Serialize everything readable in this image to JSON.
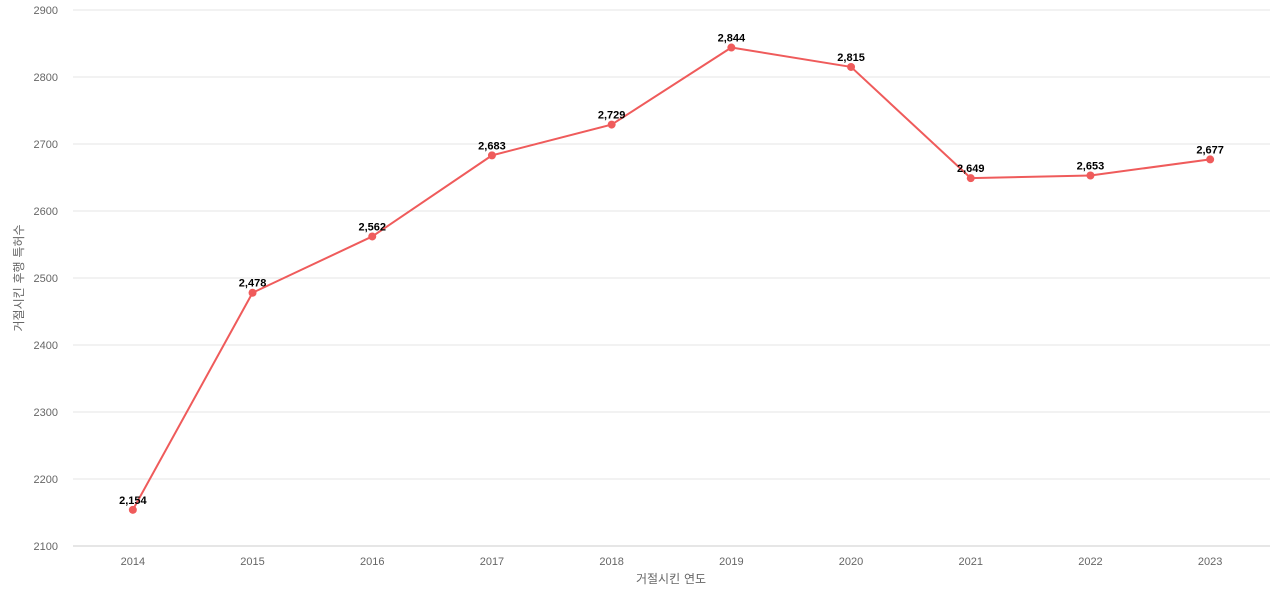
{
  "chart_data": {
    "type": "line",
    "title": "",
    "xlabel": "거절시킨 연도",
    "ylabel": "거절시킨 후행 특허수",
    "categories": [
      "2014",
      "2015",
      "2016",
      "2017",
      "2018",
      "2019",
      "2020",
      "2021",
      "2022",
      "2023"
    ],
    "series": [
      {
        "values": [
          2154,
          2478,
          2562,
          2683,
          2729,
          2844,
          2815,
          2649,
          2653,
          2677
        ],
        "labels": [
          "2,154",
          "2,478",
          "2,562",
          "2,683",
          "2,729",
          "2,844",
          "2,815",
          "2,649",
          "2,653",
          "2,677"
        ],
        "color": "#ef5b5b"
      }
    ],
    "ylim": [
      2100,
      2900
    ],
    "yticks": [
      "2100",
      "2200",
      "2300",
      "2400",
      "2500",
      "2600",
      "2700",
      "2800",
      "2900"
    ],
    "grid": true,
    "legend": "none"
  }
}
